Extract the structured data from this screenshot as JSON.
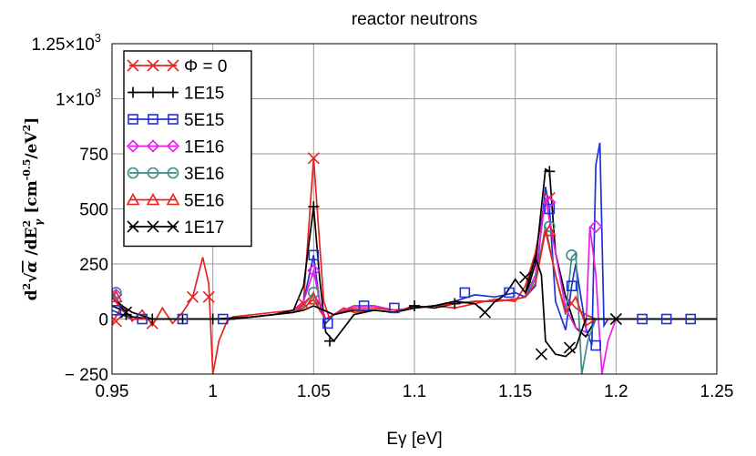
{
  "chart_data": {
    "type": "line",
    "title": "reactor neutrons",
    "xlabel": "Eγ [eV]",
    "ylabel_parts": [
      "d",
      "2",
      "√",
      "α",
      " /dE",
      "2",
      "γ",
      " [cm",
      "-0.5",
      "/eV",
      "2",
      "]"
    ],
    "xlim": [
      0.95,
      1.25
    ],
    "ylim": [
      -250,
      1250
    ],
    "x_ticks": [
      0.95,
      1.0,
      1.05,
      1.1,
      1.15,
      1.2,
      1.25
    ],
    "x_tick_labels": [
      "0.95",
      "1",
      "1.05",
      "1.1",
      "1.15",
      "1.2",
      "1.25"
    ],
    "y_ticks": [
      -250,
      0,
      250,
      500,
      750,
      1000,
      1250
    ],
    "y_tick_labels": [
      "− 250",
      "0",
      "250",
      "500",
      "750",
      "1×10",
      "1.25×10"
    ],
    "y_tick_exponents": [
      "",
      "",
      "",
      "",
      "",
      "3",
      "3"
    ],
    "grid": true,
    "legend_position": "top-left",
    "series": [
      {
        "name": "Φ = 0",
        "color": "#e8231f",
        "marker": "x",
        "x": [
          0.95,
          0.955,
          0.96,
          0.965,
          0.97,
          0.975,
          0.98,
          0.985,
          0.99,
          0.995,
          0.998,
          1.0,
          1.003,
          1.007,
          1.01,
          1.02,
          1.03,
          1.04,
          1.045,
          1.05,
          1.055,
          1.058,
          1.06,
          1.065,
          1.07,
          1.08,
          1.09,
          1.1,
          1.11,
          1.12,
          1.13,
          1.14,
          1.15,
          1.155,
          1.16,
          1.165,
          1.17,
          1.175,
          1.18,
          1.185,
          1.19,
          1.2,
          1.21,
          1.22,
          1.23,
          1.24,
          1.25
        ],
        "y": [
          -20,
          60,
          -10,
          40,
          -30,
          50,
          -20,
          30,
          100,
          280,
          160,
          -250,
          -100,
          -10,
          10,
          20,
          30,
          40,
          80,
          730,
          80,
          0,
          20,
          50,
          30,
          40,
          30,
          50,
          60,
          50,
          70,
          90,
          80,
          150,
          300,
          550,
          300,
          100,
          50,
          20,
          0,
          0,
          0,
          0,
          0,
          0,
          0
        ],
        "mx": [
          0.952,
          0.97,
          0.99,
          0.998,
          1.045,
          1.05,
          1.167
        ],
        "my": [
          -10,
          -20,
          100,
          100,
          70,
          730,
          550
        ]
      },
      {
        "name": "1E15",
        "color": "#000000",
        "marker": "+",
        "x": [
          0.95,
          0.955,
          0.96,
          0.97,
          0.98,
          0.99,
          1.0,
          1.01,
          1.02,
          1.03,
          1.04,
          1.045,
          1.05,
          1.053,
          1.056,
          1.06,
          1.07,
          1.08,
          1.09,
          1.1,
          1.11,
          1.12,
          1.13,
          1.14,
          1.15,
          1.155,
          1.16,
          1.165,
          1.167,
          1.17,
          1.175,
          1.18,
          1.185,
          1.19,
          1.2,
          1.21,
          1.22,
          1.23,
          1.24,
          1.25
        ],
        "y": [
          60,
          40,
          10,
          0,
          0,
          0,
          0,
          5,
          10,
          20,
          40,
          150,
          510,
          180,
          -60,
          -100,
          20,
          40,
          30,
          60,
          50,
          70,
          80,
          80,
          90,
          100,
          250,
          680,
          670,
          300,
          100,
          -40,
          -80,
          0,
          0,
          0,
          0,
          0,
          0,
          0
        ],
        "mx": [
          0.957,
          0.97,
          0.985,
          1.0,
          1.05,
          1.058,
          1.1,
          1.12,
          1.167
        ],
        "my": [
          20,
          0,
          0,
          0,
          510,
          -100,
          60,
          70,
          670
        ]
      },
      {
        "name": "5E15",
        "color": "#1f31d8",
        "marker": "s",
        "x": [
          0.95,
          0.955,
          0.96,
          0.97,
          0.98,
          0.99,
          1.0,
          1.01,
          1.02,
          1.03,
          1.04,
          1.045,
          1.05,
          1.053,
          1.056,
          1.06,
          1.07,
          1.08,
          1.09,
          1.1,
          1.11,
          1.12,
          1.13,
          1.14,
          1.15,
          1.155,
          1.16,
          1.165,
          1.167,
          1.17,
          1.175,
          1.178,
          1.18,
          1.185,
          1.188,
          1.19,
          1.192,
          1.194,
          1.196,
          1.2,
          1.21,
          1.22,
          1.23,
          1.24,
          1.25
        ],
        "y": [
          40,
          20,
          0,
          0,
          0,
          0,
          0,
          0,
          10,
          20,
          30,
          80,
          290,
          70,
          -20,
          20,
          60,
          60,
          40,
          50,
          60,
          80,
          110,
          100,
          120,
          100,
          150,
          600,
          500,
          80,
          -50,
          150,
          250,
          -40,
          -120,
          700,
          800,
          -30,
          0,
          0,
          0,
          0,
          0,
          0,
          0
        ],
        "mx": [
          0.952,
          0.965,
          0.985,
          1.005,
          1.05,
          1.057,
          1.075,
          1.09,
          1.125,
          1.147,
          1.167,
          1.178,
          1.19,
          1.213,
          1.225,
          1.237
        ],
        "my": [
          40,
          0,
          0,
          0,
          290,
          -20,
          60,
          50,
          120,
          120,
          500,
          150,
          -120,
          0,
          0,
          0
        ]
      },
      {
        "name": "1E16",
        "color": "#e81fe8",
        "marker": "d",
        "x": [
          0.95,
          0.955,
          0.96,
          0.97,
          0.98,
          0.99,
          1.0,
          1.01,
          1.02,
          1.03,
          1.04,
          1.045,
          1.05,
          1.053,
          1.056,
          1.06,
          1.07,
          1.08,
          1.09,
          1.1,
          1.11,
          1.12,
          1.13,
          1.14,
          1.15,
          1.155,
          1.16,
          1.165,
          1.17,
          1.175,
          1.18,
          1.185,
          1.187,
          1.19,
          1.193,
          1.196,
          1.2,
          1.21,
          1.22,
          1.23,
          1.24,
          1.25
        ],
        "y": [
          120,
          40,
          0,
          0,
          0,
          0,
          0,
          0,
          10,
          20,
          30,
          80,
          220,
          80,
          0,
          20,
          60,
          60,
          40,
          50,
          60,
          70,
          80,
          80,
          90,
          100,
          200,
          550,
          300,
          50,
          -40,
          -60,
          420,
          200,
          -250,
          -100,
          0,
          0,
          0,
          0,
          0,
          0
        ],
        "mx": [
          0.952,
          1.05,
          1.167,
          1.19
        ],
        "my": [
          110,
          220,
          530,
          420
        ]
      },
      {
        "name": "3E16",
        "color": "#3d8a8a",
        "marker": "o",
        "x": [
          0.95,
          0.955,
          0.96,
          0.97,
          0.98,
          0.99,
          1.0,
          1.01,
          1.02,
          1.03,
          1.04,
          1.045,
          1.05,
          1.053,
          1.056,
          1.06,
          1.07,
          1.08,
          1.09,
          1.1,
          1.11,
          1.12,
          1.13,
          1.14,
          1.15,
          1.155,
          1.16,
          1.165,
          1.17,
          1.175,
          1.178,
          1.18,
          1.183,
          1.186,
          1.19,
          1.2,
          1.21,
          1.22,
          1.23,
          1.24,
          1.25
        ],
        "y": [
          130,
          50,
          0,
          0,
          0,
          0,
          0,
          0,
          10,
          20,
          30,
          60,
          120,
          40,
          0,
          20,
          50,
          50,
          40,
          50,
          60,
          70,
          80,
          80,
          90,
          100,
          180,
          420,
          200,
          20,
          280,
          300,
          -250,
          -100,
          0,
          0,
          0,
          0,
          0,
          0,
          0
        ],
        "mx": [
          0.952,
          1.05,
          1.167,
          1.178
        ],
        "my": [
          120,
          120,
          420,
          290
        ]
      },
      {
        "name": "5E16",
        "color": "#e8231f",
        "marker": "^",
        "x": [
          0.95,
          0.955,
          0.96,
          0.97,
          0.98,
          0.99,
          1.0,
          1.01,
          1.02,
          1.03,
          1.04,
          1.045,
          1.05,
          1.053,
          1.056,
          1.06,
          1.07,
          1.08,
          1.09,
          1.1,
          1.11,
          1.12,
          1.13,
          1.14,
          1.15,
          1.155,
          1.16,
          1.165,
          1.17,
          1.175,
          1.18,
          1.185,
          1.19,
          1.2,
          1.21,
          1.22,
          1.23,
          1.24,
          1.25
        ],
        "y": [
          100,
          40,
          0,
          0,
          0,
          0,
          0,
          0,
          10,
          20,
          30,
          50,
          90,
          40,
          0,
          20,
          50,
          50,
          40,
          50,
          60,
          70,
          80,
          80,
          90,
          100,
          160,
          400,
          200,
          30,
          100,
          -30,
          0,
          0,
          0,
          0,
          0,
          0,
          0
        ],
        "mx": [
          0.952,
          1.05,
          1.167
        ],
        "my": [
          100,
          90,
          400
        ]
      },
      {
        "name": "1E17",
        "color": "#000000",
        "marker": "x",
        "x": [
          0.95,
          0.955,
          0.96,
          0.97,
          0.98,
          0.99,
          1.0,
          1.01,
          1.02,
          1.03,
          1.04,
          1.045,
          1.05,
          1.055,
          1.06,
          1.07,
          1.08,
          1.09,
          1.1,
          1.11,
          1.12,
          1.13,
          1.135,
          1.14,
          1.145,
          1.15,
          1.155,
          1.16,
          1.163,
          1.165,
          1.17,
          1.175,
          1.18,
          1.185,
          1.19,
          1.2,
          1.21,
          1.22,
          1.23,
          1.24,
          1.25
        ],
        "y": [
          100,
          60,
          30,
          0,
          0,
          0,
          0,
          0,
          10,
          20,
          30,
          40,
          60,
          40,
          20,
          40,
          40,
          30,
          50,
          60,
          80,
          70,
          30,
          80,
          110,
          180,
          120,
          280,
          200,
          -100,
          -160,
          -170,
          -130,
          0,
          0,
          0,
          0,
          0,
          0,
          0,
          0
        ],
        "mx": [
          0.957,
          1.135,
          1.155,
          1.163,
          1.177,
          1.2
        ],
        "my": [
          30,
          30,
          190,
          -160,
          -130,
          0
        ]
      }
    ]
  }
}
